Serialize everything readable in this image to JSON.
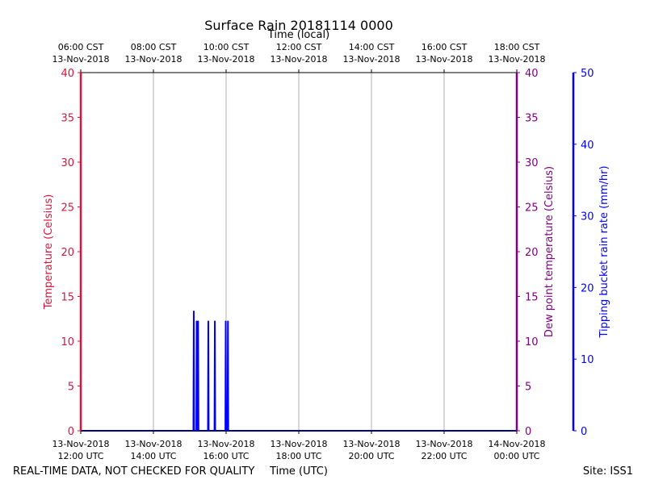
{
  "chart_data": {
    "type": "line",
    "title": "Surface Rain 20181114 0000",
    "xlabel_top": "Time (local)",
    "xlabel_bottom": "Time (UTC)",
    "ylabel_left": "Temperature (Celsius)",
    "ylabel_right_inner": "Dew point temperature (Celsius)",
    "ylabel_right_outer": "Tipping bucket rain rate (mm/hr)",
    "ylim_temperature": [
      0,
      40
    ],
    "ylim_rain_rate": [
      0,
      50
    ],
    "xlim_hours_utc": [
      12,
      24
    ],
    "grid": "vertical at each x tick",
    "x_ticks": [
      {
        "hour": 12,
        "utc_line1": "13-Nov-2018",
        "utc_line2": "12:00 UTC",
        "local_line1": "06:00 CST",
        "local_line2": "13-Nov-2018"
      },
      {
        "hour": 14,
        "utc_line1": "13-Nov-2018",
        "utc_line2": "14:00 UTC",
        "local_line1": "08:00 CST",
        "local_line2": "13-Nov-2018"
      },
      {
        "hour": 16,
        "utc_line1": "13-Nov-2018",
        "utc_line2": "16:00 UTC",
        "local_line1": "10:00 CST",
        "local_line2": "13-Nov-2018"
      },
      {
        "hour": 18,
        "utc_line1": "13-Nov-2018",
        "utc_line2": "18:00 UTC",
        "local_line1": "12:00 CST",
        "local_line2": "13-Nov-2018"
      },
      {
        "hour": 20,
        "utc_line1": "13-Nov-2018",
        "utc_line2": "20:00 UTC",
        "local_line1": "14:00 CST",
        "local_line2": "13-Nov-2018"
      },
      {
        "hour": 22,
        "utc_line1": "13-Nov-2018",
        "utc_line2": "22:00 UTC",
        "local_line1": "16:00 CST",
        "local_line2": "13-Nov-2018"
      },
      {
        "hour": 24,
        "utc_line1": "14-Nov-2018",
        "utc_line2": "00:00 UTC",
        "local_line1": "18:00 CST",
        "local_line2": "13-Nov-2018"
      }
    ],
    "temperature_ticks": [
      0,
      5,
      10,
      15,
      20,
      25,
      30,
      35,
      40
    ],
    "rain_rate_ticks": [
      0,
      10,
      20,
      30,
      40,
      50
    ],
    "series": [
      {
        "name": "Tipping bucket rain rate",
        "unit": "mm/hr",
        "axis": "rain_rate",
        "color": "#0000ff",
        "points": [
          [
            12.0,
            0
          ],
          [
            15.1,
            0
          ],
          [
            15.11,
            16.7
          ],
          [
            15.12,
            0
          ],
          [
            15.18,
            0
          ],
          [
            15.19,
            15.3
          ],
          [
            15.2,
            0
          ],
          [
            15.22,
            0
          ],
          [
            15.23,
            15.3
          ],
          [
            15.24,
            0
          ],
          [
            15.5,
            0
          ],
          [
            15.51,
            15.3
          ],
          [
            15.52,
            0
          ],
          [
            15.68,
            0
          ],
          [
            15.69,
            15.3
          ],
          [
            15.7,
            0
          ],
          [
            15.98,
            0
          ],
          [
            15.99,
            15.3
          ],
          [
            16.0,
            0
          ],
          [
            16.04,
            0
          ],
          [
            16.05,
            15.3
          ],
          [
            16.06,
            0
          ],
          [
            24.0,
            0
          ]
        ]
      }
    ],
    "colors": {
      "temperature": "#dc143c",
      "dew_point": "#800080",
      "rain_rate": "#0000ff",
      "grid": "#b0b0b0"
    }
  },
  "footer": {
    "left_note": "REAL-TIME DATA, NOT CHECKED FOR QUALITY",
    "site": "Site: ISS1"
  }
}
